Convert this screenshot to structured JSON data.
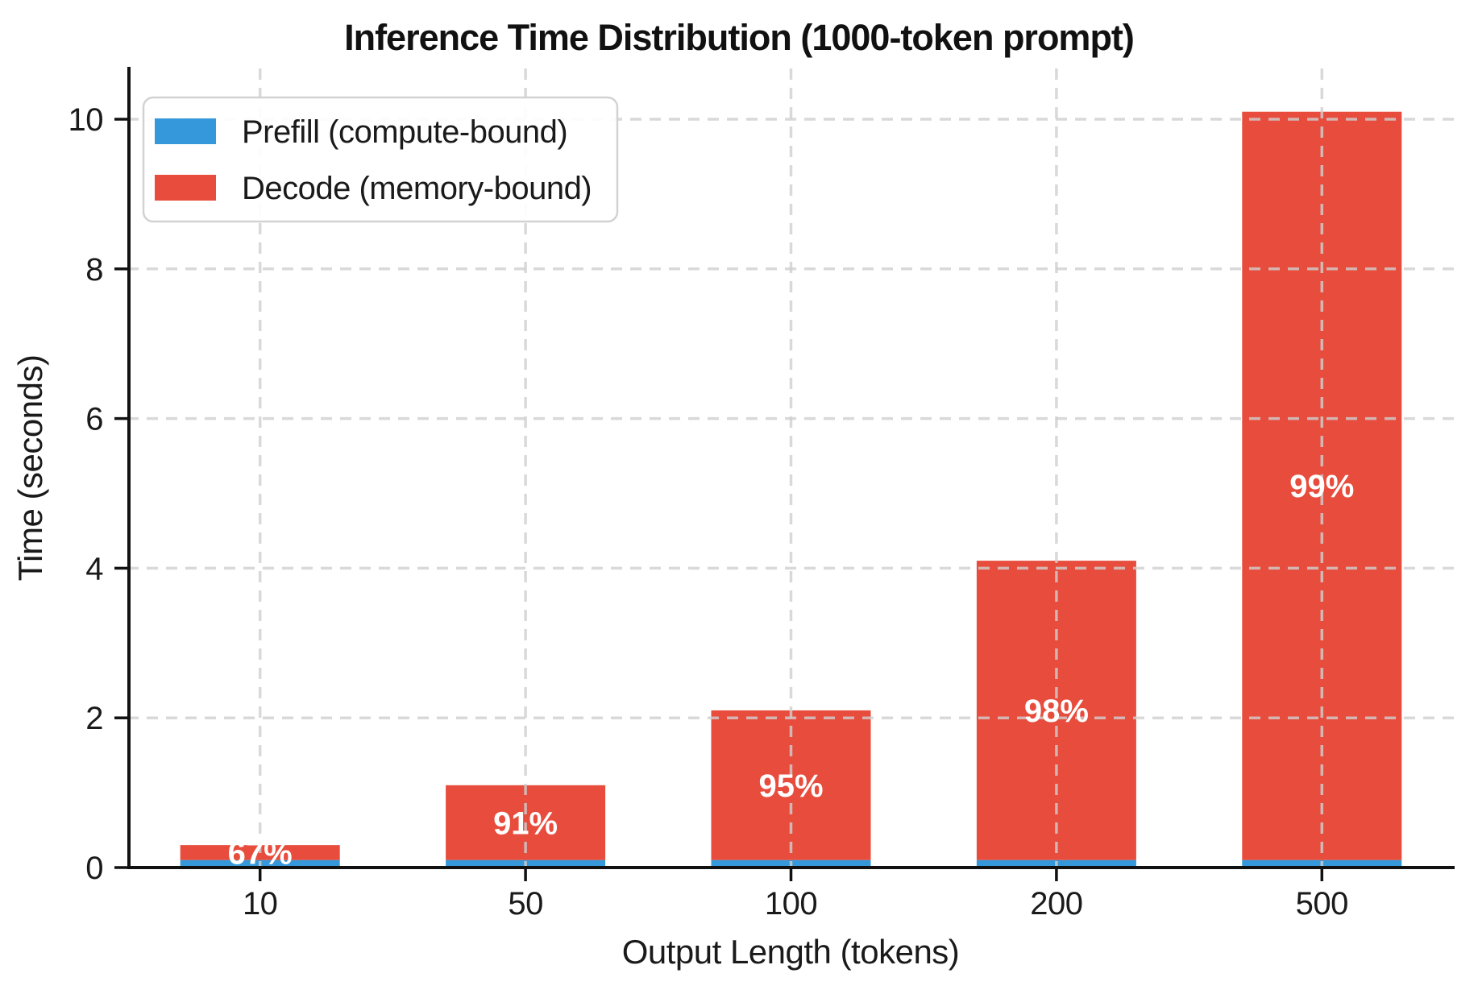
{
  "title": "Inference Time Distribution (1000-token prompt)",
  "colors": {
    "prefill": "#3498db",
    "decode": "#e74c3c",
    "grid": "#d0d0d0",
    "spine": "#111111",
    "text": "#1a1a1a",
    "bar_label_text": "#ffffff",
    "legend_border": "#d2d2d2",
    "legend_bg": "#ffffff",
    "background": "#ffffff"
  },
  "legend": {
    "position": "upper left",
    "items": [
      {
        "label": "Prefill (compute-bound)",
        "color_key": "prefill"
      },
      {
        "label": "Decode (memory-bound)",
        "color_key": "decode"
      }
    ]
  },
  "chart_data": {
    "type": "bar",
    "stacked": true,
    "title": "Inference Time Distribution (1000-token prompt)",
    "xlabel": "Output Length (tokens)",
    "ylabel": "Time (seconds)",
    "categories": [
      "10",
      "50",
      "100",
      "200",
      "500"
    ],
    "series": [
      {
        "name": "Prefill (compute-bound)",
        "color_key": "prefill",
        "values": [
          0.1,
          0.1,
          0.1,
          0.1,
          0.1
        ]
      },
      {
        "name": "Decode (memory-bound)",
        "color_key": "decode",
        "values": [
          0.2,
          1.0,
          2.0,
          4.0,
          10.0
        ]
      }
    ],
    "stack_totals": [
      0.3,
      1.1,
      2.1,
      4.1,
      10.1
    ],
    "bar_labels": [
      "67%",
      "91%",
      "95%",
      "98%",
      "99%"
    ],
    "bar_labels_on_series": "Decode (memory-bound)",
    "yticks": [
      0,
      2,
      4,
      6,
      8,
      10
    ],
    "ylim": [
      0,
      10.7
    ],
    "grid": "dashed, horizontal and vertical, drawn above bars",
    "legend_position": "upper left"
  }
}
